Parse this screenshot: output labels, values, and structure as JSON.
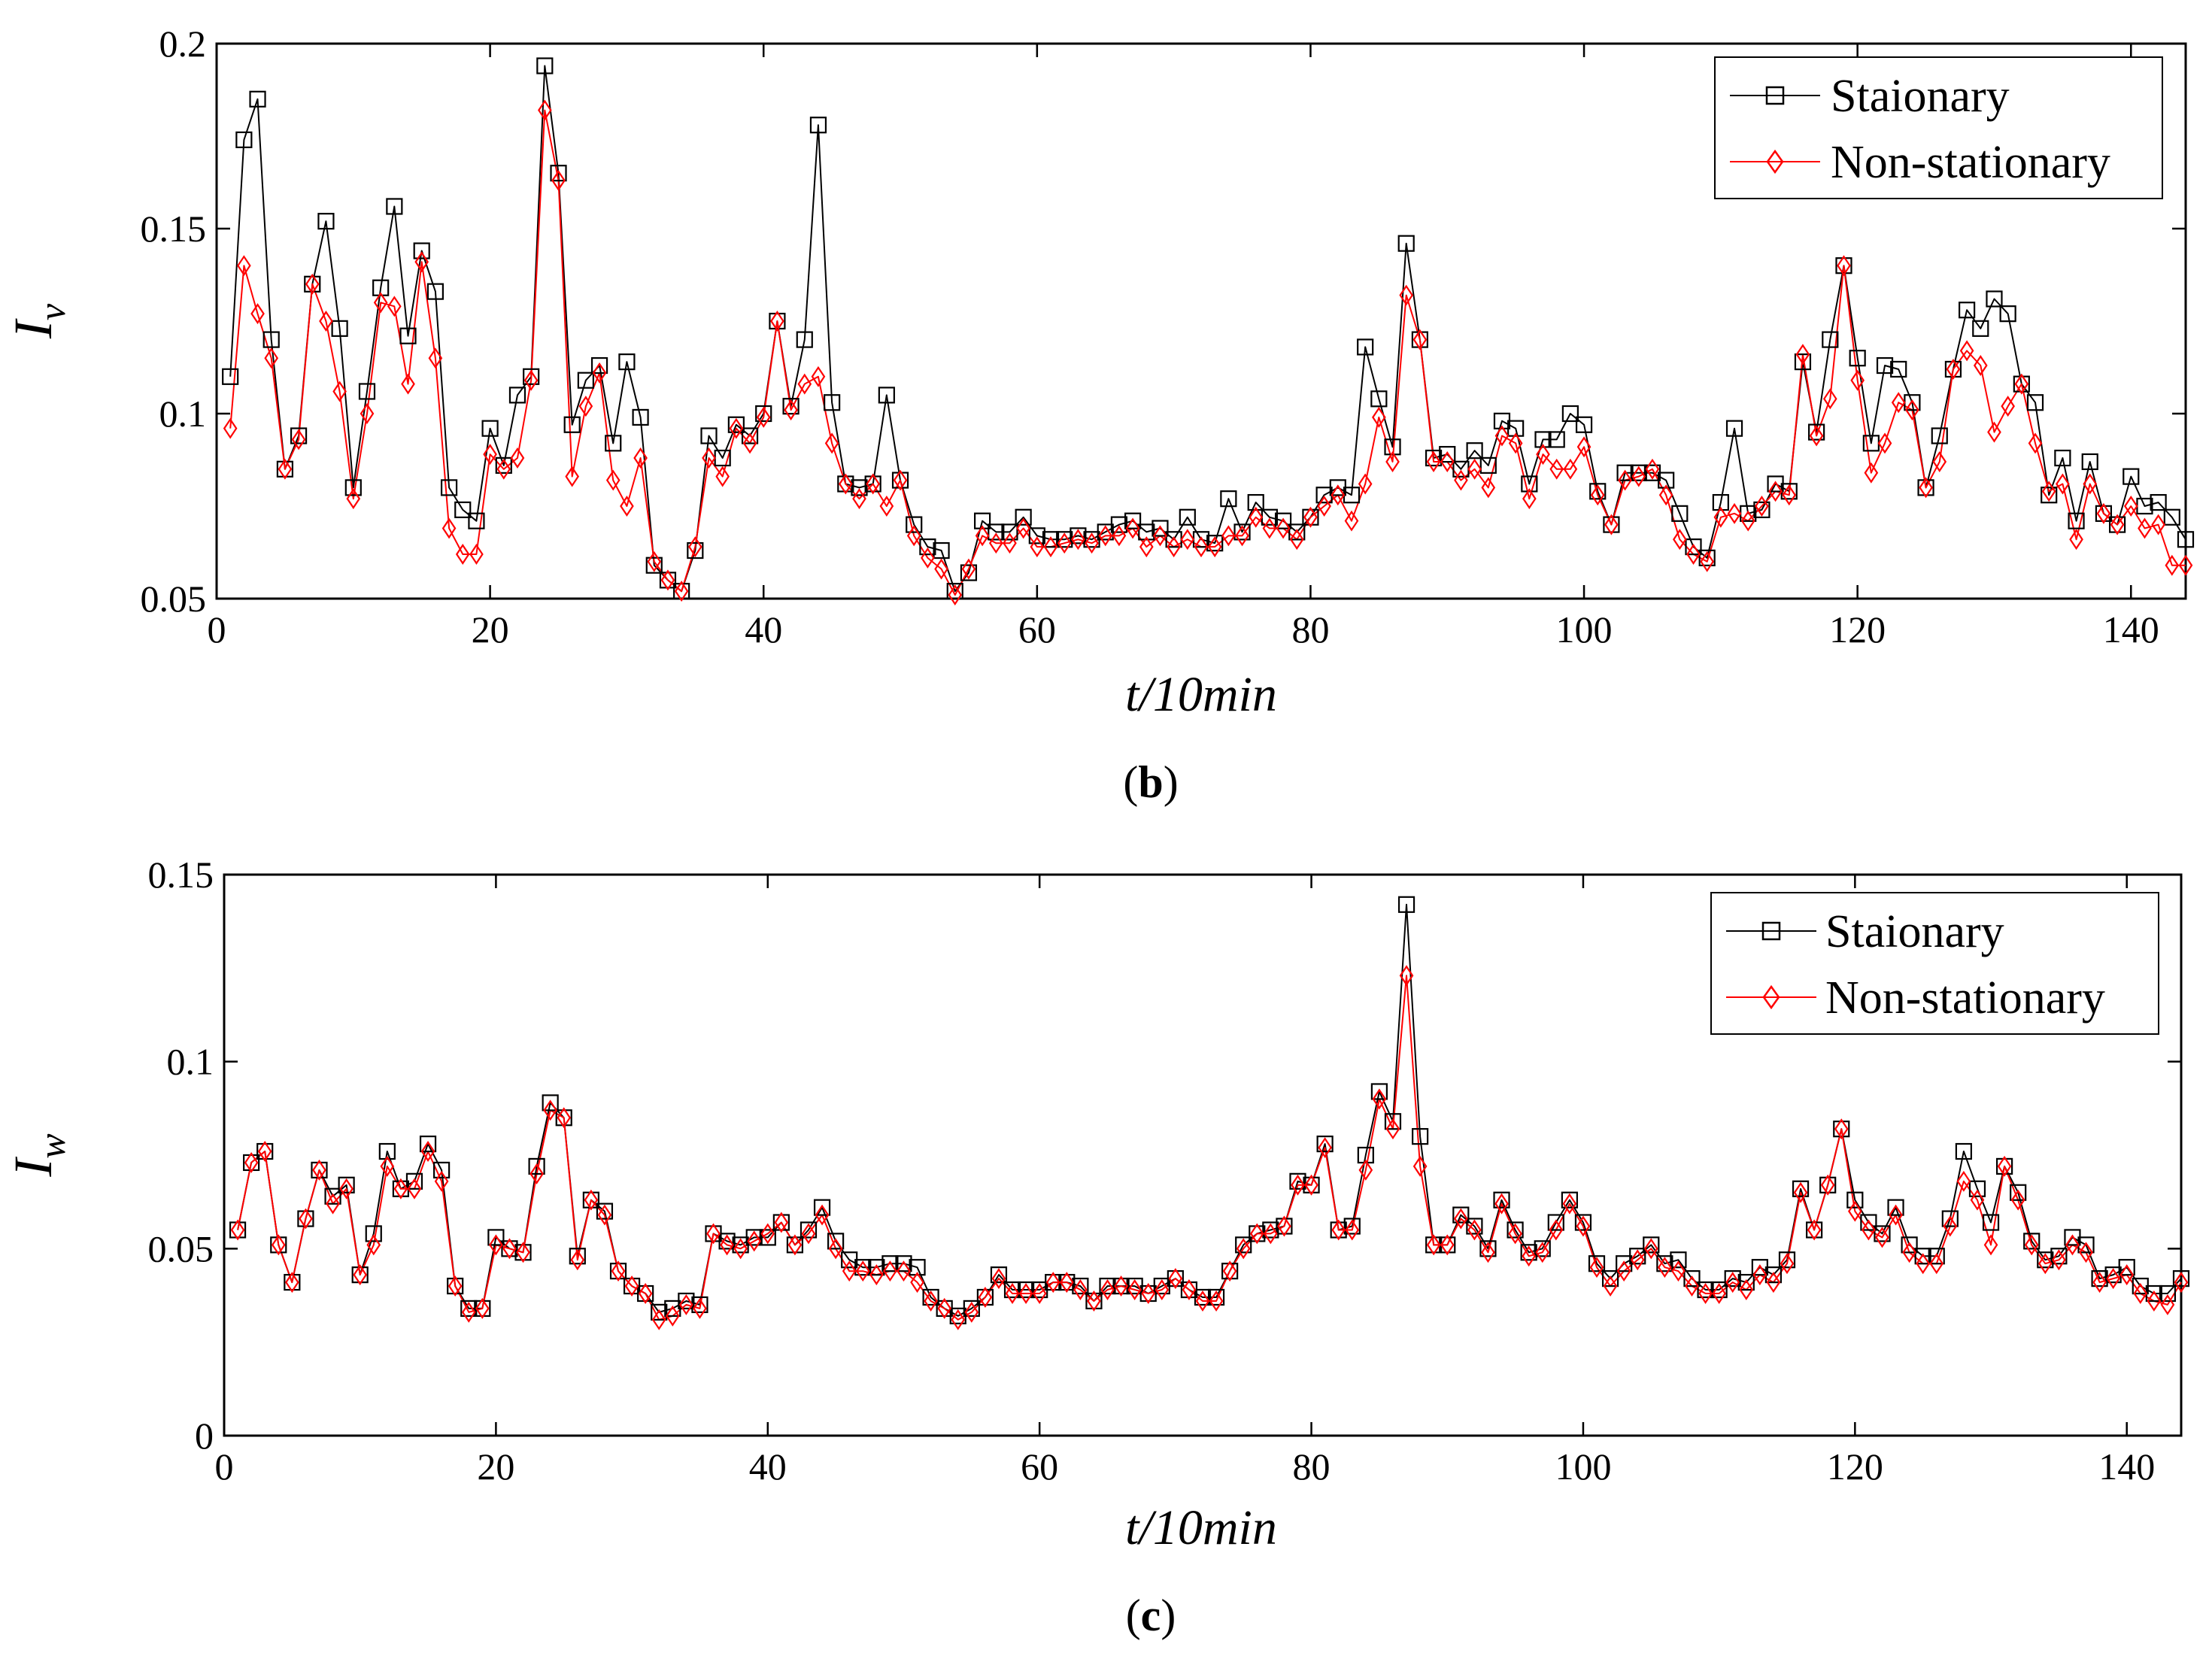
{
  "chart_data": [
    {
      "type": "line",
      "panel": "(b)",
      "caption_open": "(",
      "caption_letter": "b",
      "caption_close": ")",
      "xlabel": "t/10min",
      "ylabel_main": "I",
      "ylabel_sub": "v",
      "xlim": [
        0,
        144
      ],
      "ylim": [
        0.05,
        0.2
      ],
      "xticks": [
        0,
        20,
        40,
        60,
        80,
        100,
        120,
        140
      ],
      "xtick_labels": [
        "0",
        "20",
        "40",
        "60",
        "80",
        "100",
        "120",
        "140"
      ],
      "yticks": [
        0.05,
        0.1,
        0.15,
        0.2
      ],
      "ytick_labels": [
        "0.05",
        "0.1",
        "0.15",
        "0.2"
      ],
      "legend_position": "top-right",
      "x": [
        1,
        2,
        3,
        4,
        5,
        6,
        7,
        8,
        9,
        10,
        11,
        12,
        13,
        14,
        15,
        16,
        17,
        18,
        19,
        20,
        21,
        22,
        23,
        24,
        25,
        26,
        27,
        28,
        29,
        30,
        31,
        32,
        33,
        34,
        35,
        36,
        37,
        38,
        39,
        40,
        41,
        42,
        43,
        44,
        45,
        46,
        47,
        48,
        49,
        50,
        51,
        52,
        53,
        54,
        55,
        56,
        57,
        58,
        59,
        60,
        61,
        62,
        63,
        64,
        65,
        66,
        67,
        68,
        69,
        70,
        71,
        72,
        73,
        74,
        75,
        76,
        77,
        78,
        79,
        80,
        81,
        82,
        83,
        84,
        85,
        86,
        87,
        88,
        89,
        90,
        91,
        92,
        93,
        94,
        95,
        96,
        97,
        98,
        99,
        100,
        101,
        102,
        103,
        104,
        105,
        106,
        107,
        108,
        109,
        110,
        111,
        112,
        113,
        114,
        115,
        116,
        117,
        118,
        119,
        120,
        121,
        122,
        123,
        124,
        125,
        126,
        127,
        128,
        129,
        130,
        131,
        132,
        133,
        134,
        135,
        136,
        137,
        138,
        139,
        140,
        141,
        142,
        143,
        144
      ],
      "series": [
        {
          "name": "Staionary",
          "color": "#000000",
          "marker": "square",
          "values": [
            0.11,
            0.174,
            0.185,
            0.12,
            0.085,
            0.094,
            0.135,
            0.152,
            0.123,
            0.08,
            0.106,
            0.134,
            0.156,
            0.121,
            0.144,
            0.133,
            0.08,
            0.074,
            0.071,
            0.096,
            0.086,
            0.105,
            0.11,
            0.194,
            0.165,
            0.097,
            0.109,
            0.113,
            0.092,
            0.114,
            0.099,
            0.059,
            0.055,
            0.052,
            0.063,
            0.094,
            0.088,
            0.097,
            0.094,
            0.1,
            0.125,
            0.102,
            0.12,
            0.178,
            0.103,
            0.081,
            0.08,
            0.081,
            0.105,
            0.082,
            0.07,
            0.064,
            0.063,
            0.052,
            0.057,
            0.071,
            0.068,
            0.068,
            0.072,
            0.067,
            0.066,
            0.066,
            0.067,
            0.066,
            0.068,
            0.07,
            0.071,
            0.068,
            0.069,
            0.066,
            0.072,
            0.066,
            0.065,
            0.077,
            0.068,
            0.076,
            0.072,
            0.071,
            0.068,
            0.072,
            0.078,
            0.08,
            0.078,
            0.118,
            0.104,
            0.091,
            0.146,
            0.12,
            0.088,
            0.089,
            0.085,
            0.09,
            0.086,
            0.098,
            0.096,
            0.081,
            0.093,
            0.093,
            0.1,
            0.097,
            0.079,
            0.07,
            0.084,
            0.084,
            0.084,
            0.082,
            0.073,
            0.064,
            0.061,
            0.076,
            0.096,
            0.073,
            0.074,
            0.081,
            0.079,
            0.114,
            0.095,
            0.12,
            0.14,
            0.115,
            0.092,
            0.113,
            0.112,
            0.103,
            0.08,
            0.094,
            0.112,
            0.128,
            0.123,
            0.131,
            0.127,
            0.108,
            0.103,
            0.078,
            0.088,
            0.071,
            0.087,
            0.073,
            0.07,
            0.083,
            0.075,
            0.076,
            0.072,
            0.066
          ]
        },
        {
          "name": "Non-stationary",
          "color": "#ff0000",
          "marker": "diamond",
          "values": [
            0.096,
            0.14,
            0.127,
            0.115,
            0.085,
            0.093,
            0.135,
            0.125,
            0.106,
            0.077,
            0.1,
            0.13,
            0.129,
            0.108,
            0.141,
            0.115,
            0.069,
            0.062,
            0.062,
            0.089,
            0.085,
            0.088,
            0.109,
            0.182,
            0.163,
            0.083,
            0.102,
            0.111,
            0.082,
            0.075,
            0.088,
            0.06,
            0.055,
            0.052,
            0.064,
            0.088,
            0.083,
            0.096,
            0.092,
            0.099,
            0.125,
            0.101,
            0.108,
            0.11,
            0.092,
            0.081,
            0.077,
            0.081,
            0.075,
            0.082,
            0.067,
            0.061,
            0.058,
            0.051,
            0.058,
            0.067,
            0.065,
            0.065,
            0.069,
            0.064,
            0.064,
            0.065,
            0.066,
            0.065,
            0.067,
            0.067,
            0.069,
            0.064,
            0.067,
            0.064,
            0.066,
            0.064,
            0.064,
            0.067,
            0.067,
            0.072,
            0.069,
            0.069,
            0.066,
            0.072,
            0.075,
            0.078,
            0.071,
            0.081,
            0.099,
            0.087,
            0.132,
            0.12,
            0.087,
            0.087,
            0.082,
            0.085,
            0.08,
            0.094,
            0.092,
            0.077,
            0.089,
            0.085,
            0.085,
            0.091,
            0.078,
            0.07,
            0.082,
            0.083,
            0.085,
            0.078,
            0.066,
            0.062,
            0.06,
            0.072,
            0.073,
            0.071,
            0.075,
            0.079,
            0.078,
            0.116,
            0.094,
            0.104,
            0.14,
            0.109,
            0.084,
            0.092,
            0.103,
            0.101,
            0.08,
            0.087,
            0.112,
            0.117,
            0.113,
            0.095,
            0.102,
            0.108,
            0.092,
            0.079,
            0.081,
            0.066,
            0.081,
            0.073,
            0.07,
            0.075,
            0.069,
            0.07,
            0.059,
            0.059
          ]
        }
      ]
    },
    {
      "type": "line",
      "panel": "(c)",
      "caption_open": "(",
      "caption_letter": "c",
      "caption_close": ")",
      "xlabel": "t/10min",
      "ylabel_main": "I",
      "ylabel_sub": "w",
      "xlim": [
        0,
        144
      ],
      "ylim": [
        0,
        0.15
      ],
      "xticks": [
        0,
        20,
        40,
        60,
        80,
        100,
        120,
        140
      ],
      "xtick_labels": [
        "0",
        "20",
        "40",
        "60",
        "80",
        "100",
        "120",
        "140"
      ],
      "yticks": [
        0,
        0.05,
        0.1,
        0.15
      ],
      "ytick_labels": [
        "0",
        "0.05",
        "0.1",
        "0.15"
      ],
      "legend_position": "top-right",
      "x": [
        1,
        2,
        3,
        4,
        5,
        6,
        7,
        8,
        9,
        10,
        11,
        12,
        13,
        14,
        15,
        16,
        17,
        18,
        19,
        20,
        21,
        22,
        23,
        24,
        25,
        26,
        27,
        28,
        29,
        30,
        31,
        32,
        33,
        34,
        35,
        36,
        37,
        38,
        39,
        40,
        41,
        42,
        43,
        44,
        45,
        46,
        47,
        48,
        49,
        50,
        51,
        52,
        53,
        54,
        55,
        56,
        57,
        58,
        59,
        60,
        61,
        62,
        63,
        64,
        65,
        66,
        67,
        68,
        69,
        70,
        71,
        72,
        73,
        74,
        75,
        76,
        77,
        78,
        79,
        80,
        81,
        82,
        83,
        84,
        85,
        86,
        87,
        88,
        89,
        90,
        91,
        92,
        93,
        94,
        95,
        96,
        97,
        98,
        99,
        100,
        101,
        102,
        103,
        104,
        105,
        106,
        107,
        108,
        109,
        110,
        111,
        112,
        113,
        114,
        115,
        116,
        117,
        118,
        119,
        120,
        121,
        122,
        123,
        124,
        125,
        126,
        127,
        128,
        129,
        130,
        131,
        132,
        133,
        134,
        135,
        136,
        137,
        138,
        139,
        140,
        141,
        142,
        143,
        144
      ],
      "series": [
        {
          "name": "Staionary",
          "color": "#000000",
          "marker": "square",
          "values": [
            0.055,
            0.073,
            0.076,
            0.051,
            0.041,
            0.058,
            0.071,
            0.064,
            0.067,
            0.043,
            0.054,
            0.076,
            0.066,
            0.068,
            0.078,
            0.071,
            0.04,
            0.034,
            0.034,
            0.053,
            0.05,
            0.049,
            0.072,
            0.089,
            0.085,
            0.048,
            0.063,
            0.06,
            0.044,
            0.04,
            0.038,
            0.033,
            0.034,
            0.036,
            0.035,
            0.054,
            0.052,
            0.051,
            0.053,
            0.053,
            0.057,
            0.051,
            0.055,
            0.061,
            0.052,
            0.047,
            0.045,
            0.045,
            0.046,
            0.046,
            0.045,
            0.037,
            0.034,
            0.032,
            0.034,
            0.037,
            0.043,
            0.039,
            0.039,
            0.039,
            0.041,
            0.041,
            0.04,
            0.036,
            0.04,
            0.04,
            0.04,
            0.038,
            0.04,
            0.042,
            0.039,
            0.037,
            0.037,
            0.044,
            0.051,
            0.054,
            0.055,
            0.056,
            0.068,
            0.067,
            0.078,
            0.055,
            0.056,
            0.075,
            0.092,
            0.084,
            0.142,
            0.08,
            0.051,
            0.051,
            0.059,
            0.056,
            0.05,
            0.063,
            0.055,
            0.049,
            0.05,
            0.057,
            0.063,
            0.057,
            0.046,
            0.042,
            0.046,
            0.048,
            0.051,
            0.046,
            0.047,
            0.042,
            0.039,
            0.039,
            0.042,
            0.041,
            0.045,
            0.043,
            0.047,
            0.066,
            0.055,
            0.067,
            0.082,
            0.063,
            0.057,
            0.054,
            0.061,
            0.051,
            0.048,
            0.048,
            0.058,
            0.076,
            0.066,
            0.057,
            0.072,
            0.065,
            0.052,
            0.047,
            0.048,
            0.053,
            0.051,
            0.042,
            0.043,
            0.045,
            0.04,
            0.038,
            0.038,
            0.042
          ]
        },
        {
          "name": "Non-stationary",
          "color": "#ff0000",
          "marker": "diamond",
          "values": [
            0.055,
            0.073,
            0.076,
            0.051,
            0.041,
            0.058,
            0.071,
            0.062,
            0.066,
            0.043,
            0.051,
            0.072,
            0.066,
            0.066,
            0.076,
            0.068,
            0.04,
            0.033,
            0.034,
            0.051,
            0.05,
            0.049,
            0.07,
            0.087,
            0.085,
            0.047,
            0.063,
            0.059,
            0.044,
            0.04,
            0.038,
            0.031,
            0.032,
            0.035,
            0.034,
            0.054,
            0.051,
            0.05,
            0.052,
            0.054,
            0.057,
            0.051,
            0.054,
            0.059,
            0.05,
            0.044,
            0.044,
            0.043,
            0.044,
            0.044,
            0.041,
            0.036,
            0.034,
            0.031,
            0.033,
            0.037,
            0.042,
            0.038,
            0.038,
            0.038,
            0.041,
            0.041,
            0.039,
            0.036,
            0.039,
            0.04,
            0.039,
            0.038,
            0.039,
            0.042,
            0.039,
            0.036,
            0.036,
            0.044,
            0.05,
            0.054,
            0.054,
            0.056,
            0.067,
            0.067,
            0.077,
            0.055,
            0.055,
            0.071,
            0.09,
            0.082,
            0.123,
            0.072,
            0.051,
            0.051,
            0.058,
            0.055,
            0.049,
            0.062,
            0.054,
            0.048,
            0.049,
            0.055,
            0.062,
            0.056,
            0.045,
            0.04,
            0.044,
            0.047,
            0.05,
            0.045,
            0.044,
            0.04,
            0.038,
            0.038,
            0.041,
            0.039,
            0.043,
            0.041,
            0.046,
            0.065,
            0.055,
            0.067,
            0.082,
            0.06,
            0.055,
            0.053,
            0.059,
            0.049,
            0.046,
            0.046,
            0.056,
            0.068,
            0.063,
            0.051,
            0.072,
            0.063,
            0.051,
            0.046,
            0.047,
            0.051,
            0.049,
            0.041,
            0.042,
            0.043,
            0.038,
            0.036,
            0.035,
            0.041
          ]
        }
      ]
    }
  ]
}
